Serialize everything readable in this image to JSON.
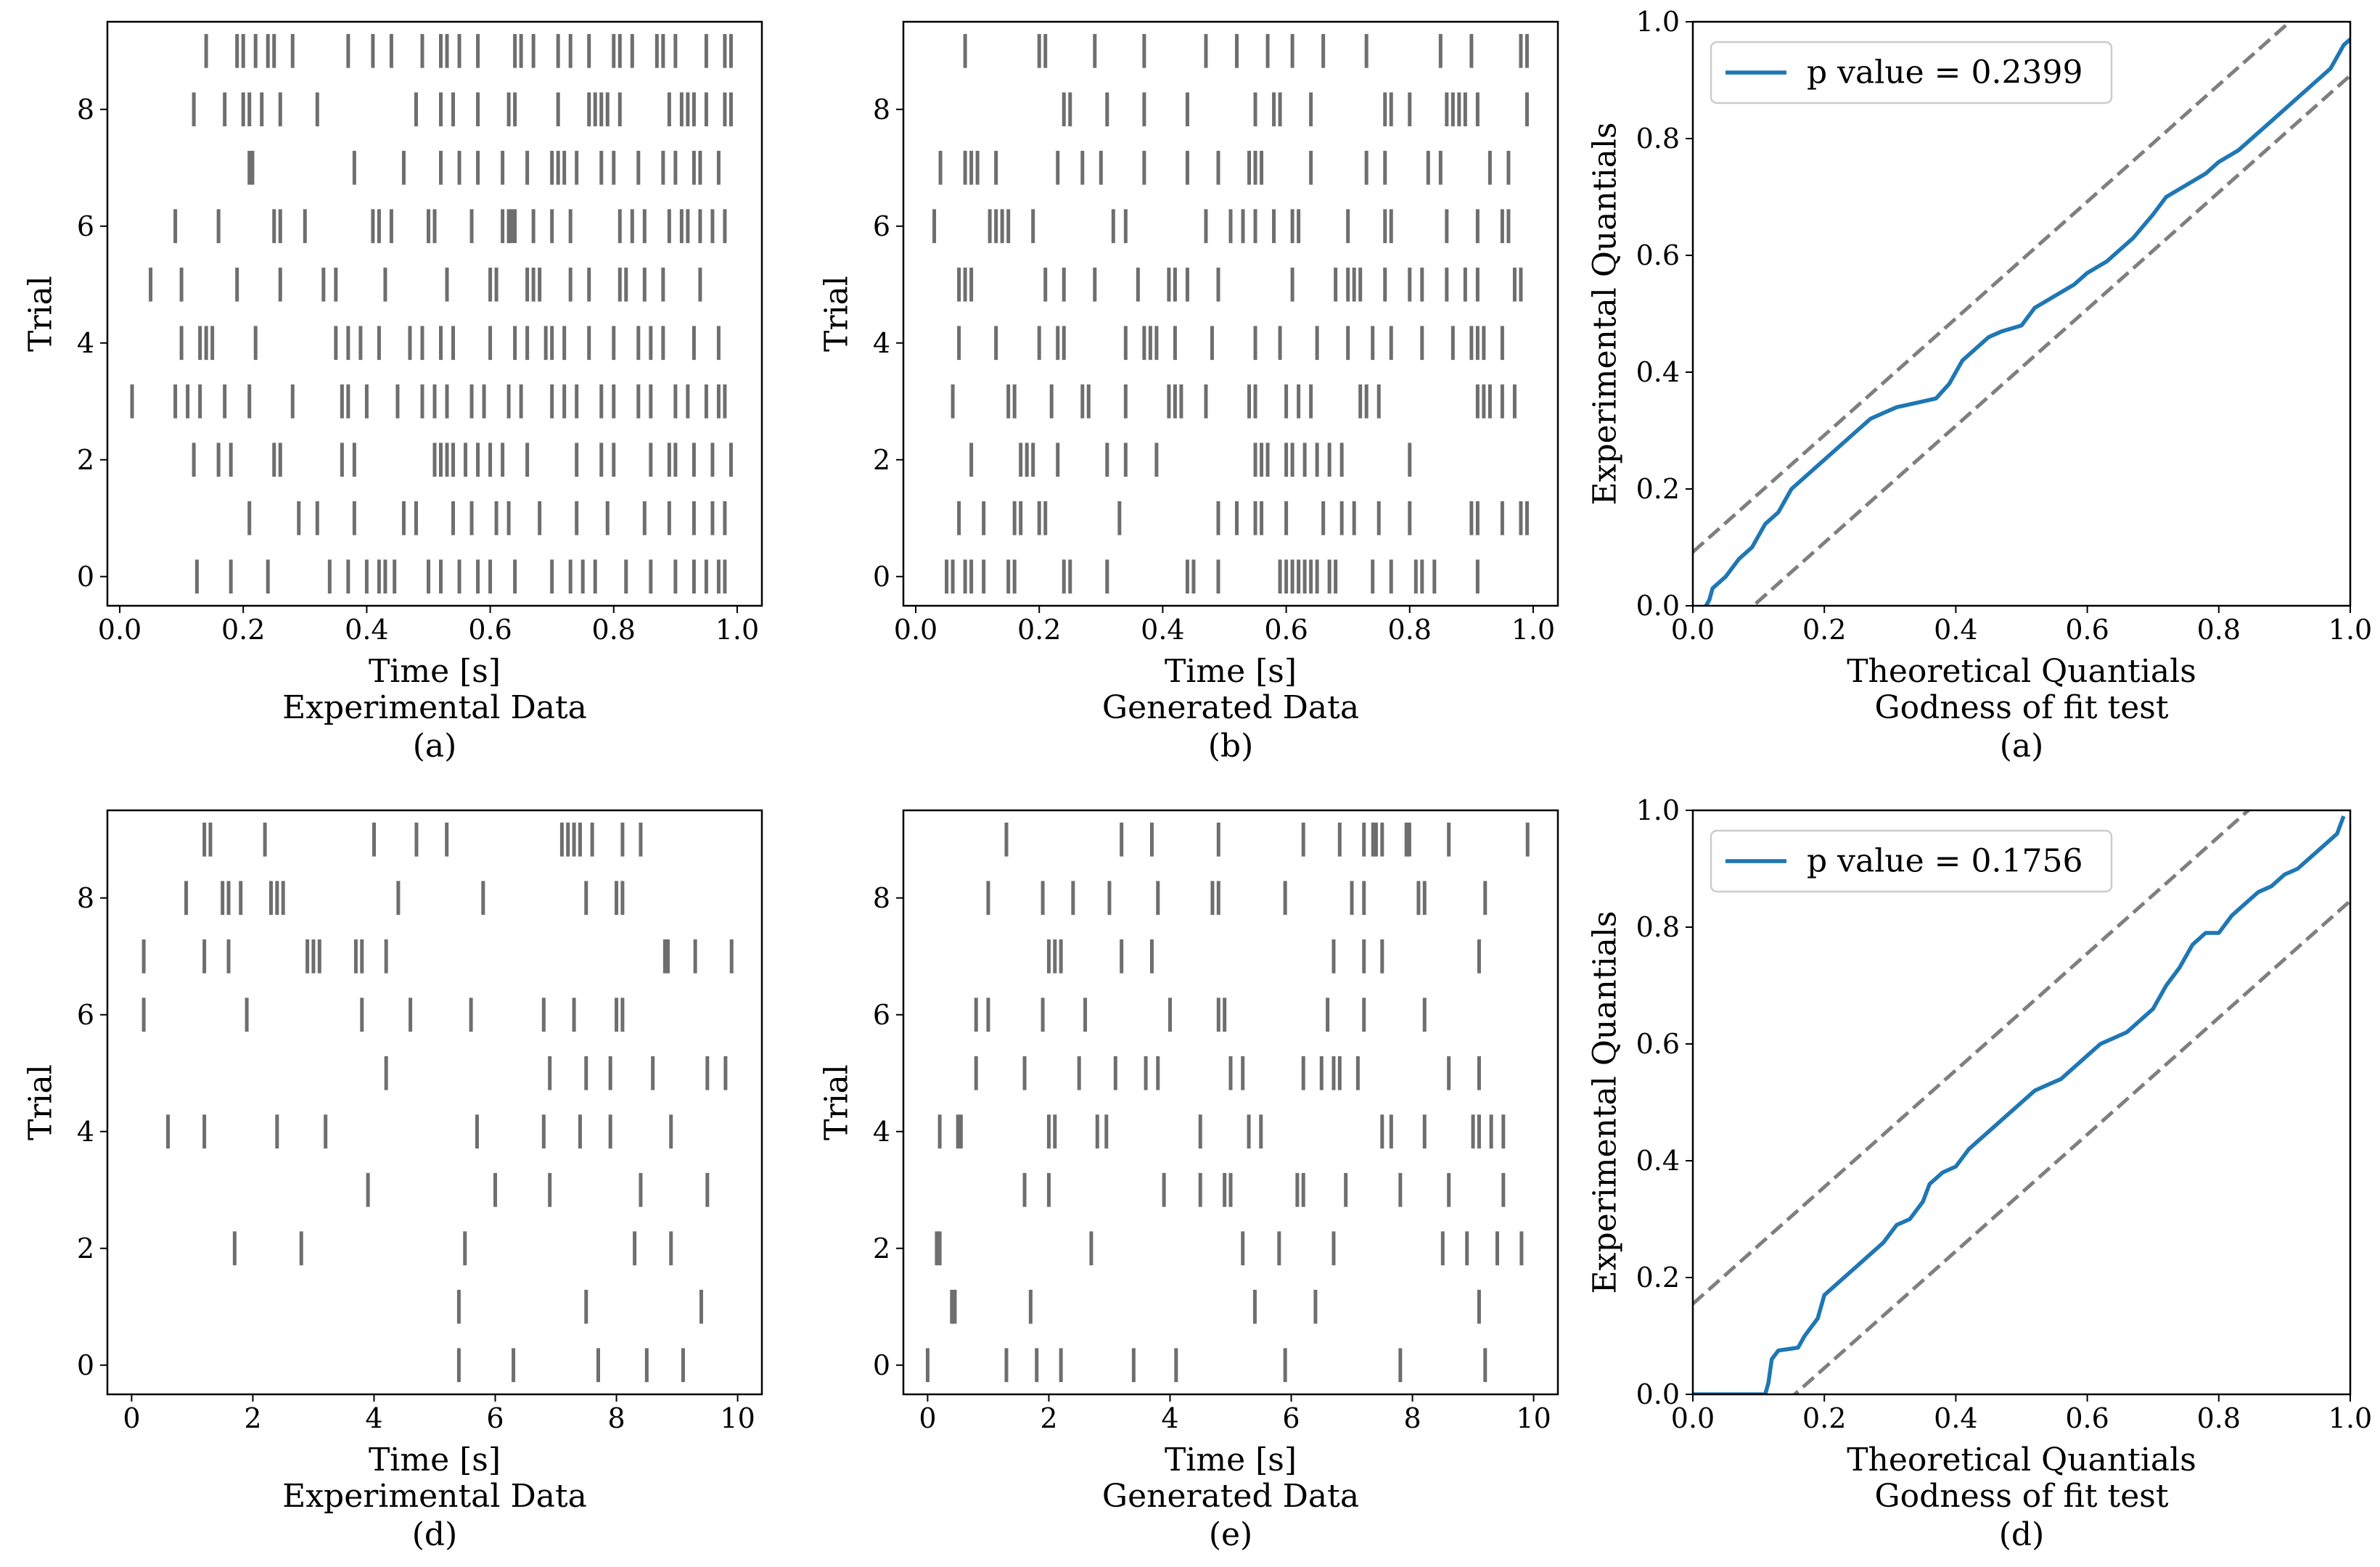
{
  "colors": {
    "spike": "#6e6e6e",
    "ks": "#1f77b4",
    "bound": "#7f7f7f",
    "axis": "#000000"
  },
  "chart_data": [
    {
      "type": "raster",
      "id": "top-left",
      "xlabel": "Time [s]",
      "ylabel": "Trial",
      "subtitle": "Experimental Data",
      "panel": "(a)",
      "xlim": [
        -0.02,
        1.04
      ],
      "ylim": [
        -0.5,
        9.5
      ],
      "xticks": [
        0.0,
        0.2,
        0.4,
        0.6,
        0.8,
        1.0
      ],
      "xtick_labels": [
        "0.0",
        "0.2",
        "0.4",
        "0.6",
        "0.8",
        "1.0"
      ],
      "yticks": [
        0,
        2,
        4,
        6,
        8
      ],
      "ytick_labels": [
        "0",
        "2",
        "4",
        "6",
        "8"
      ],
      "trials": [
        [
          0.125,
          0.18,
          0.24,
          0.34,
          0.37,
          0.4,
          0.42,
          0.43,
          0.445,
          0.5,
          0.52,
          0.55,
          0.58,
          0.6,
          0.64,
          0.7,
          0.73,
          0.75,
          0.77,
          0.82,
          0.86,
          0.9,
          0.93,
          0.95,
          0.97,
          0.98
        ],
        [
          0.21,
          0.29,
          0.32,
          0.38,
          0.46,
          0.48,
          0.54,
          0.57,
          0.61,
          0.63,
          0.68,
          0.74,
          0.79,
          0.85,
          0.89,
          0.93,
          0.96,
          0.98
        ],
        [
          0.12,
          0.16,
          0.18,
          0.25,
          0.26,
          0.36,
          0.38,
          0.51,
          0.52,
          0.53,
          0.54,
          0.56,
          0.58,
          0.6,
          0.62,
          0.66,
          0.74,
          0.78,
          0.8,
          0.86,
          0.89,
          0.9,
          0.93,
          0.96,
          0.99
        ],
        [
          0.02,
          0.09,
          0.11,
          0.13,
          0.17,
          0.21,
          0.28,
          0.36,
          0.37,
          0.4,
          0.45,
          0.49,
          0.51,
          0.53,
          0.57,
          0.59,
          0.63,
          0.65,
          0.7,
          0.72,
          0.74,
          0.78,
          0.8,
          0.84,
          0.86,
          0.9,
          0.92,
          0.95,
          0.97,
          0.98
        ],
        [
          0.1,
          0.13,
          0.14,
          0.15,
          0.22,
          0.35,
          0.37,
          0.39,
          0.42,
          0.47,
          0.49,
          0.52,
          0.54,
          0.6,
          0.64,
          0.66,
          0.69,
          0.7,
          0.72,
          0.76,
          0.8,
          0.84,
          0.86,
          0.88,
          0.93,
          0.97
        ],
        [
          0.05,
          0.1,
          0.19,
          0.26,
          0.33,
          0.35,
          0.43,
          0.53,
          0.6,
          0.61,
          0.66,
          0.67,
          0.68,
          0.73,
          0.76,
          0.81,
          0.82,
          0.85,
          0.88,
          0.94
        ],
        [
          0.09,
          0.16,
          0.25,
          0.26,
          0.3,
          0.41,
          0.42,
          0.44,
          0.5,
          0.51,
          0.57,
          0.62,
          0.63,
          0.635,
          0.64,
          0.67,
          0.7,
          0.73,
          0.81,
          0.83,
          0.85,
          0.89,
          0.91,
          0.92,
          0.94,
          0.96,
          0.98
        ],
        [
          0.21,
          0.215,
          0.38,
          0.46,
          0.52,
          0.55,
          0.58,
          0.62,
          0.66,
          0.7,
          0.71,
          0.72,
          0.74,
          0.78,
          0.8,
          0.84,
          0.88,
          0.9,
          0.93,
          0.94,
          0.97
        ],
        [
          0.12,
          0.17,
          0.2,
          0.21,
          0.23,
          0.26,
          0.32,
          0.48,
          0.52,
          0.54,
          0.58,
          0.63,
          0.64,
          0.71,
          0.76,
          0.77,
          0.78,
          0.79,
          0.81,
          0.89,
          0.91,
          0.92,
          0.93,
          0.95,
          0.98,
          0.99
        ],
        [
          0.14,
          0.19,
          0.2,
          0.22,
          0.24,
          0.25,
          0.28,
          0.37,
          0.41,
          0.44,
          0.49,
          0.52,
          0.53,
          0.55,
          0.58,
          0.64,
          0.65,
          0.67,
          0.71,
          0.73,
          0.76,
          0.8,
          0.81,
          0.83,
          0.87,
          0.88,
          0.9,
          0.95,
          0.98,
          0.99
        ]
      ]
    },
    {
      "type": "raster",
      "id": "top-middle",
      "xlabel": "Time [s]",
      "ylabel": "Trial",
      "subtitle": "Generated Data",
      "panel": "(b)",
      "xlim": [
        -0.02,
        1.04
      ],
      "ylim": [
        -0.5,
        9.5
      ],
      "xticks": [
        0.0,
        0.2,
        0.4,
        0.6,
        0.8,
        1.0
      ],
      "xtick_labels": [
        "0.0",
        "0.2",
        "0.4",
        "0.6",
        "0.8",
        "1.0"
      ],
      "yticks": [
        0,
        2,
        4,
        6,
        8
      ],
      "ytick_labels": [
        "0",
        "2",
        "4",
        "6",
        "8"
      ],
      "trials": [
        [
          0.05,
          0.06,
          0.08,
          0.09,
          0.11,
          0.15,
          0.16,
          0.24,
          0.25,
          0.31,
          0.44,
          0.45,
          0.49,
          0.59,
          0.6,
          0.61,
          0.62,
          0.63,
          0.64,
          0.65,
          0.67,
          0.68,
          0.74,
          0.77,
          0.81,
          0.82,
          0.84,
          0.91
        ],
        [
          0.07,
          0.11,
          0.16,
          0.17,
          0.2,
          0.21,
          0.33,
          0.49,
          0.52,
          0.55,
          0.56,
          0.6,
          0.66,
          0.69,
          0.71,
          0.75,
          0.8,
          0.9,
          0.91,
          0.95,
          0.98,
          0.99
        ],
        [
          0.09,
          0.17,
          0.18,
          0.19,
          0.23,
          0.31,
          0.34,
          0.39,
          0.55,
          0.56,
          0.57,
          0.6,
          0.61,
          0.63,
          0.65,
          0.67,
          0.69,
          0.8
        ],
        [
          0.06,
          0.15,
          0.16,
          0.22,
          0.27,
          0.28,
          0.34,
          0.41,
          0.42,
          0.43,
          0.47,
          0.54,
          0.55,
          0.6,
          0.62,
          0.64,
          0.72,
          0.73,
          0.75,
          0.91,
          0.92,
          0.93,
          0.95,
          0.97
        ],
        [
          0.07,
          0.13,
          0.2,
          0.23,
          0.24,
          0.34,
          0.37,
          0.38,
          0.39,
          0.42,
          0.48,
          0.55,
          0.59,
          0.65,
          0.7,
          0.74,
          0.77,
          0.82,
          0.87,
          0.9,
          0.91,
          0.92,
          0.95
        ],
        [
          0.07,
          0.08,
          0.09,
          0.21,
          0.24,
          0.29,
          0.36,
          0.41,
          0.42,
          0.44,
          0.49,
          0.61,
          0.68,
          0.7,
          0.71,
          0.72,
          0.76,
          0.8,
          0.82,
          0.86,
          0.89,
          0.91,
          0.97,
          0.98
        ],
        [
          0.03,
          0.12,
          0.13,
          0.14,
          0.15,
          0.19,
          0.32,
          0.34,
          0.47,
          0.51,
          0.53,
          0.55,
          0.58,
          0.61,
          0.62,
          0.7,
          0.76,
          0.77,
          0.86,
          0.91,
          0.95,
          0.96
        ],
        [
          0.04,
          0.08,
          0.09,
          0.1,
          0.13,
          0.23,
          0.27,
          0.3,
          0.37,
          0.44,
          0.49,
          0.54,
          0.55,
          0.56,
          0.64,
          0.73,
          0.76,
          0.83,
          0.85,
          0.93,
          0.96
        ],
        [
          0.24,
          0.25,
          0.31,
          0.37,
          0.44,
          0.55,
          0.58,
          0.59,
          0.64,
          0.76,
          0.77,
          0.8,
          0.86,
          0.87,
          0.88,
          0.89,
          0.91,
          0.99
        ],
        [
          0.08,
          0.2,
          0.21,
          0.29,
          0.37,
          0.47,
          0.52,
          0.57,
          0.61,
          0.66,
          0.73,
          0.85,
          0.9,
          0.98,
          0.99
        ]
      ]
    },
    {
      "type": "line",
      "id": "top-right",
      "xlabel": "Theoretical Quantials",
      "ylabel": "Experimental Quantials",
      "subtitle": "Godness of fit test",
      "panel": "(a)",
      "legend": "p value = 0.2399",
      "legend_position": "top-left",
      "xlim": [
        0.0,
        1.0
      ],
      "ylim": [
        0.0,
        1.0
      ],
      "xticks": [
        0.0,
        0.2,
        0.4,
        0.6,
        0.8,
        1.0
      ],
      "xtick_labels": [
        "0.0",
        "0.2",
        "0.4",
        "0.6",
        "0.8",
        "1.0"
      ],
      "yticks": [
        0.0,
        0.2,
        0.4,
        0.6,
        0.8,
        1.0
      ],
      "ytick_labels": [
        "0.0",
        "0.2",
        "0.4",
        "0.6",
        "0.8",
        "1.0"
      ],
      "bound_offset": 0.092,
      "series": [
        {
          "name": "p value = 0.2399",
          "x": [
            0.02,
            0.025,
            0.03,
            0.05,
            0.07,
            0.09,
            0.11,
            0.13,
            0.15,
            0.17,
            0.19,
            0.21,
            0.23,
            0.25,
            0.27,
            0.29,
            0.31,
            0.33,
            0.35,
            0.37,
            0.39,
            0.41,
            0.43,
            0.45,
            0.47,
            0.5,
            0.52,
            0.55,
            0.58,
            0.6,
            0.63,
            0.65,
            0.67,
            0.7,
            0.72,
            0.75,
            0.78,
            0.8,
            0.83,
            0.86,
            0.88,
            0.9,
            0.93,
            0.95,
            0.97,
            0.98,
            0.99,
            1.0
          ],
          "y": [
            0.0,
            0.01,
            0.03,
            0.05,
            0.08,
            0.1,
            0.14,
            0.16,
            0.2,
            0.22,
            0.24,
            0.26,
            0.28,
            0.3,
            0.32,
            0.33,
            0.34,
            0.345,
            0.35,
            0.355,
            0.38,
            0.42,
            0.44,
            0.46,
            0.47,
            0.48,
            0.51,
            0.53,
            0.55,
            0.57,
            0.59,
            0.61,
            0.63,
            0.67,
            0.7,
            0.72,
            0.74,
            0.76,
            0.78,
            0.81,
            0.83,
            0.85,
            0.88,
            0.9,
            0.92,
            0.94,
            0.96,
            0.97
          ]
        }
      ]
    },
    {
      "type": "raster",
      "id": "bottom-left",
      "xlabel": "Time [s]",
      "ylabel": "Trial",
      "subtitle": "Experimental Data",
      "panel": "(d)",
      "xlim": [
        -0.4,
        10.4
      ],
      "ylim": [
        -0.5,
        9.5
      ],
      "xticks": [
        0,
        2,
        4,
        6,
        8,
        10
      ],
      "xtick_labels": [
        "0",
        "2",
        "4",
        "6",
        "8",
        "10"
      ],
      "yticks": [
        0,
        2,
        4,
        6,
        8
      ],
      "ytick_labels": [
        "0",
        "2",
        "4",
        "6",
        "8"
      ],
      "trials": [
        [
          5.4,
          6.3,
          7.7,
          8.5,
          9.1
        ],
        [
          5.4,
          7.5,
          9.4
        ],
        [
          1.7,
          2.8,
          5.5,
          8.3,
          8.9
        ],
        [
          3.9,
          6.0,
          6.9,
          8.4,
          9.5
        ],
        [
          0.6,
          1.2,
          2.4,
          3.2,
          5.7,
          6.8,
          7.4,
          7.9,
          8.9
        ],
        [
          4.2,
          6.9,
          7.5,
          7.9,
          8.6,
          9.5,
          9.8
        ],
        [
          0.2,
          1.9,
          3.8,
          4.6,
          5.6,
          6.8,
          7.3,
          8.0,
          8.1
        ],
        [
          0.2,
          1.2,
          1.6,
          2.9,
          3.0,
          3.1,
          3.7,
          3.8,
          4.2,
          8.8,
          8.85,
          9.3,
          9.9
        ],
        [
          0.9,
          1.5,
          1.6,
          1.8,
          2.3,
          2.4,
          2.5,
          4.4,
          5.8,
          7.5,
          8.0,
          8.1
        ],
        [
          1.2,
          1.3,
          2.2,
          4.0,
          4.7,
          5.2,
          7.1,
          7.2,
          7.3,
          7.4,
          7.6,
          8.1,
          8.4
        ]
      ]
    },
    {
      "type": "raster",
      "id": "bottom-middle",
      "xlabel": "Time [s]",
      "ylabel": "Trial",
      "subtitle": "Generated Data",
      "panel": "(e)",
      "xlim": [
        -0.4,
        10.4
      ],
      "ylim": [
        -0.5,
        9.5
      ],
      "xticks": [
        0,
        2,
        4,
        6,
        8,
        10
      ],
      "xtick_labels": [
        "0",
        "2",
        "4",
        "6",
        "8",
        "10"
      ],
      "yticks": [
        0,
        2,
        4,
        6,
        8
      ],
      "ytick_labels": [
        "0",
        "2",
        "4",
        "6",
        "8"
      ],
      "trials": [
        [
          0.0,
          1.3,
          1.8,
          2.2,
          3.4,
          4.1,
          5.9,
          7.8,
          9.2
        ],
        [
          0.4,
          0.45,
          1.7,
          5.4,
          6.4,
          9.1
        ],
        [
          0.15,
          0.2,
          2.7,
          5.2,
          5.8,
          6.7,
          8.5,
          8.9,
          9.4,
          9.8
        ],
        [
          1.6,
          2.0,
          3.9,
          4.5,
          4.9,
          5.0,
          6.1,
          6.2,
          6.9,
          7.8,
          8.6,
          9.5
        ],
        [
          0.2,
          0.5,
          0.55,
          2.0,
          2.1,
          2.8,
          2.95,
          4.5,
          5.3,
          5.5,
          7.5,
          7.65,
          8.2,
          9.0,
          9.1,
          9.3,
          9.5
        ],
        [
          0.8,
          1.6,
          2.5,
          3.1,
          3.6,
          3.8,
          5.0,
          5.2,
          6.2,
          6.5,
          6.7,
          6.8,
          7.1,
          8.6,
          9.1
        ],
        [
          0.8,
          1.0,
          1.9,
          2.6,
          4.0,
          4.8,
          4.9,
          6.6,
          7.2,
          8.2
        ],
        [
          2.0,
          2.1,
          2.2,
          3.2,
          3.7,
          6.7,
          7.2,
          7.5,
          9.1
        ],
        [
          1.0,
          1.9,
          2.4,
          3.0,
          3.8,
          4.7,
          4.8,
          5.9,
          7.0,
          7.2,
          8.1,
          8.2,
          9.2
        ],
        [
          1.3,
          3.2,
          3.7,
          4.8,
          6.2,
          6.8,
          7.2,
          7.35,
          7.4,
          7.5,
          7.9,
          7.95,
          8.6,
          9.9
        ]
      ]
    },
    {
      "type": "line",
      "id": "bottom-right",
      "xlabel": "Theoretical Quantials",
      "ylabel": "Experimental Quantials",
      "subtitle": "Godness of fit test",
      "panel": "(d)",
      "legend": "p value = 0.1756",
      "legend_position": "top-left",
      "xlim": [
        0.0,
        1.0
      ],
      "ylim": [
        0.0,
        1.0
      ],
      "xticks": [
        0.0,
        0.2,
        0.4,
        0.6,
        0.8,
        1.0
      ],
      "xtick_labels": [
        "0.0",
        "0.2",
        "0.4",
        "0.6",
        "0.8",
        "1.0"
      ],
      "yticks": [
        0.0,
        0.2,
        0.4,
        0.6,
        0.8,
        1.0
      ],
      "ytick_labels": [
        "0.0",
        "0.2",
        "0.4",
        "0.6",
        "0.8",
        "1.0"
      ],
      "bound_offset": 0.155,
      "series": [
        {
          "name": "p value = 0.1756",
          "x": [
            0.0,
            0.11,
            0.115,
            0.12,
            0.13,
            0.16,
            0.17,
            0.19,
            0.2,
            0.21,
            0.23,
            0.25,
            0.27,
            0.29,
            0.31,
            0.33,
            0.35,
            0.36,
            0.38,
            0.4,
            0.42,
            0.44,
            0.46,
            0.48,
            0.5,
            0.52,
            0.54,
            0.56,
            0.58,
            0.6,
            0.62,
            0.64,
            0.66,
            0.68,
            0.7,
            0.72,
            0.74,
            0.76,
            0.78,
            0.8,
            0.82,
            0.84,
            0.86,
            0.88,
            0.9,
            0.92,
            0.94,
            0.96,
            0.98,
            0.99
          ],
          "y": [
            0.0,
            0.0,
            0.02,
            0.06,
            0.075,
            0.08,
            0.1,
            0.13,
            0.17,
            0.18,
            0.2,
            0.22,
            0.24,
            0.26,
            0.29,
            0.3,
            0.33,
            0.36,
            0.38,
            0.39,
            0.42,
            0.44,
            0.46,
            0.48,
            0.5,
            0.52,
            0.53,
            0.54,
            0.56,
            0.58,
            0.6,
            0.61,
            0.62,
            0.64,
            0.66,
            0.7,
            0.73,
            0.77,
            0.79,
            0.79,
            0.82,
            0.84,
            0.86,
            0.87,
            0.89,
            0.9,
            0.92,
            0.94,
            0.96,
            0.99
          ]
        }
      ]
    }
  ]
}
